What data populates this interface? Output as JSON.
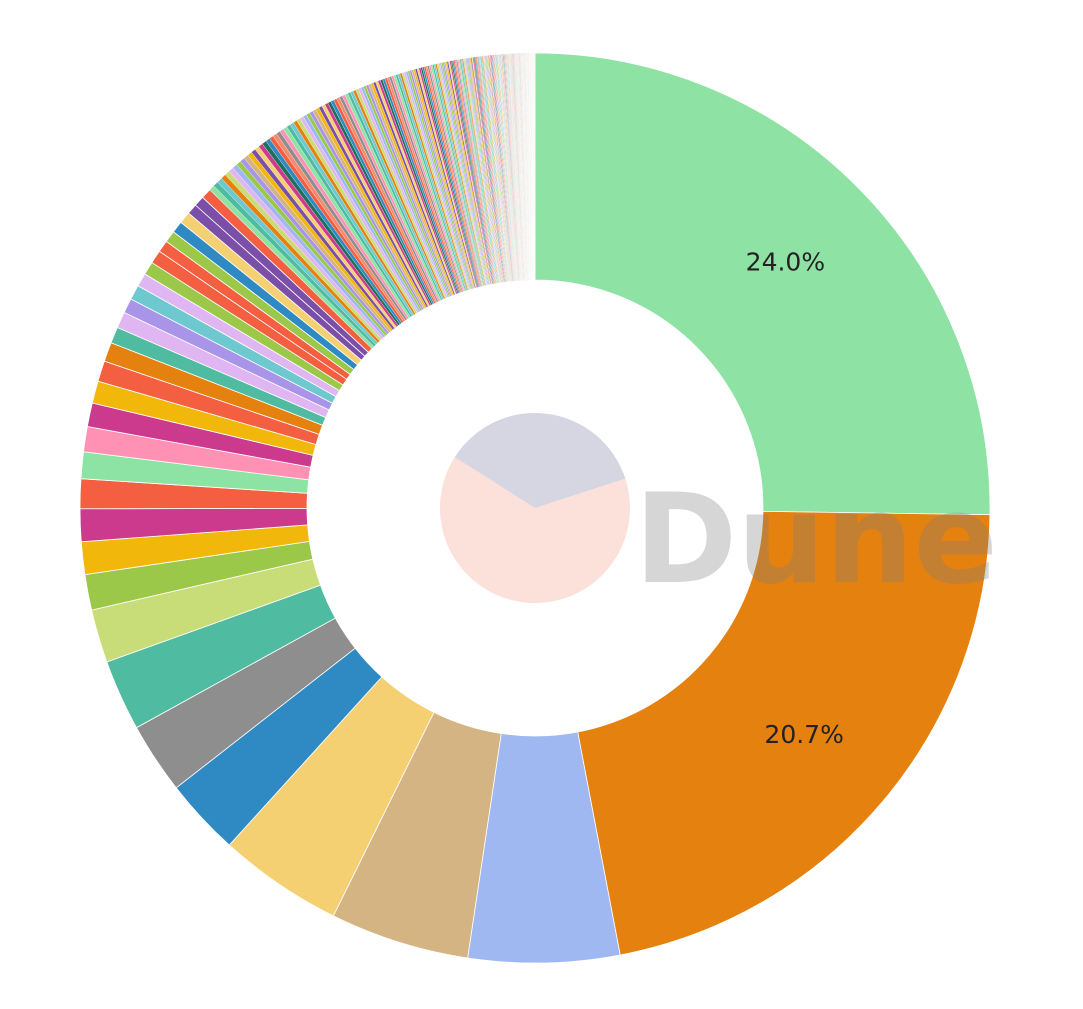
{
  "chart_data": {
    "type": "pie",
    "donut": true,
    "start_angle_deg": 0,
    "direction": "clockwise",
    "major_slices": [
      {
        "value": 24.0,
        "label": "24.0%",
        "color": "#8ee2a3"
      },
      {
        "value": 20.7,
        "label": "20.7%",
        "color": "#e4810f"
      },
      {
        "value": 5.1,
        "label": "",
        "color": "#a0b8f2"
      },
      {
        "value": 4.7,
        "label": "",
        "color": "#d4b483"
      },
      {
        "value": 4.2,
        "label": "",
        "color": "#f5d073"
      },
      {
        "value": 2.6,
        "label": "",
        "color": "#2f8ac4"
      },
      {
        "value": 2.4,
        "label": "",
        "color": "#8e8e8e"
      },
      {
        "value": 2.4,
        "label": "",
        "color": "#4fbba0"
      },
      {
        "value": 1.8,
        "label": "",
        "color": "#c8dc78"
      },
      {
        "value": 1.2,
        "label": "",
        "color": "#9bc848"
      },
      {
        "value": 1.1,
        "label": "",
        "color": "#f1b80b"
      },
      {
        "value": 1.1,
        "label": "",
        "color": "#cc3a8e"
      },
      {
        "value": 1.0,
        "label": "",
        "color": "#f35f40"
      },
      {
        "value": 0.9,
        "label": "",
        "color": "#8de3a3"
      },
      {
        "value": 0.85,
        "label": "",
        "color": "#ff91b4"
      },
      {
        "value": 0.8,
        "label": "",
        "color": "#cc3a8e"
      },
      {
        "value": 0.75,
        "label": "",
        "color": "#f1b80b"
      },
      {
        "value": 0.7,
        "label": "",
        "color": "#f35f40"
      },
      {
        "value": 0.65,
        "label": "",
        "color": "#e4810f"
      },
      {
        "value": 0.55,
        "label": "",
        "color": "#4fbba0"
      },
      {
        "value": 0.55,
        "label": "",
        "color": "#dfb6f2"
      },
      {
        "value": 0.5,
        "label": "",
        "color": "#a894e8"
      },
      {
        "value": 0.5,
        "label": "",
        "color": "#6ec8d0"
      },
      {
        "value": 0.45,
        "label": "",
        "color": "#dfb6f2"
      },
      {
        "value": 0.45,
        "label": "",
        "color": "#9bc848"
      },
      {
        "value": 0.45,
        "label": "",
        "color": "#f35f40"
      },
      {
        "value": 0.4,
        "label": "",
        "color": "#f35f40"
      },
      {
        "value": 0.4,
        "label": "",
        "color": "#9bc848"
      },
      {
        "value": 0.4,
        "label": "",
        "color": "#2f8ac4"
      },
      {
        "value": 0.4,
        "label": "",
        "color": "#f5d073"
      },
      {
        "value": 0.35,
        "label": "",
        "color": "#7b4fa8"
      },
      {
        "value": 0.35,
        "label": "",
        "color": "#7b4fa8"
      },
      {
        "value": 0.35,
        "label": "",
        "color": "#f35f40"
      }
    ],
    "tail": {
      "count": 300,
      "total": 12.05,
      "decay": 0.985,
      "palette": [
        "#8ee2a3",
        "#e4810f",
        "#a0b8f2",
        "#d4b483",
        "#f5d073",
        "#2f8ac4",
        "#8e8e8e",
        "#4fbba0",
        "#c8dc78",
        "#9bc848",
        "#f1b80b",
        "#cc3a8e",
        "#f35f40",
        "#ff91b4",
        "#6ec8d0",
        "#dfb6f2",
        "#a894e8",
        "#7b4fa8",
        "#1f6f5c",
        "#f58a6c"
      ]
    },
    "inner_pie": [
      {
        "value": 0.64,
        "color": "#fce0da"
      },
      {
        "value": 0.36,
        "color": "#d6d6e3"
      }
    ],
    "inner_pie_start_angle_deg": 72,
    "watermark": {
      "text": "Dune",
      "color": "#808080",
      "opacity": 0.32
    }
  }
}
